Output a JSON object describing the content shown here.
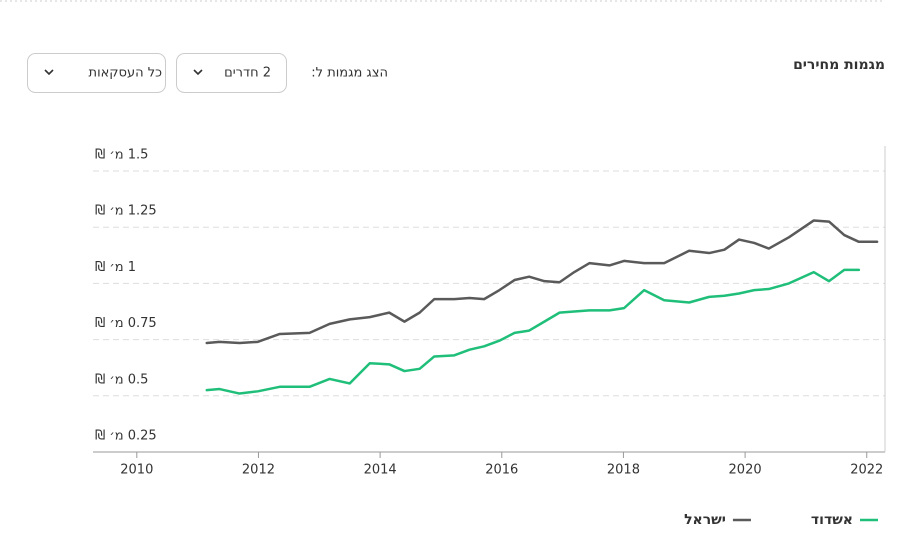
{
  "header": {
    "title": "מגמות מחירים",
    "filter_label": "הצג מגמות ל:",
    "filters": [
      "2 חדרים",
      "כל העסקאות"
    ]
  },
  "chart_data": {
    "type": "line",
    "x": [
      2011.15,
      2011.36,
      2011.69,
      2011.99,
      2012.35,
      2012.84,
      2013.17,
      2013.5,
      2013.83,
      2014.15,
      2014.4,
      2014.65,
      2014.89,
      2015.22,
      2015.47,
      2015.71,
      2015.96,
      2016.21,
      2016.45,
      2016.7,
      2016.95,
      2017.19,
      2017.44,
      2017.77,
      2018.01,
      2018.34,
      2018.67,
      2019.08,
      2019.41,
      2019.66,
      2019.9,
      2020.15,
      2020.39,
      2020.72,
      2021.13,
      2021.38,
      2021.63,
      2021.87,
      2022.17
    ],
    "series": [
      {
        "name": "אשדוד",
        "color": "#1fbf7a",
        "values": [
          0.525,
          0.53,
          0.51,
          0.52,
          0.54,
          0.54,
          0.575,
          0.555,
          0.645,
          0.64,
          0.61,
          0.62,
          0.675,
          0.68,
          0.705,
          0.72,
          0.745,
          0.78,
          0.79,
          0.83,
          0.87,
          0.875,
          0.88,
          0.88,
          0.89,
          0.97,
          0.925,
          0.915,
          0.94,
          0.945,
          0.955,
          0.97,
          0.975,
          1.0,
          1.05,
          1.01,
          1.06,
          1.06,
          null
        ]
      },
      {
        "name": "ישראל",
        "color": "#5a5a5a",
        "values": [
          0.735,
          0.74,
          0.735,
          0.74,
          0.775,
          0.78,
          0.82,
          0.84,
          0.85,
          0.87,
          0.83,
          0.87,
          0.93,
          0.93,
          0.935,
          0.93,
          0.97,
          1.015,
          1.03,
          1.01,
          1.005,
          1.05,
          1.09,
          1.08,
          1.1,
          1.09,
          1.09,
          1.145,
          1.135,
          1.15,
          1.195,
          1.18,
          1.155,
          1.205,
          1.28,
          1.275,
          1.215,
          1.185,
          1.185
        ]
      }
    ],
    "xlim": [
      2009.28,
      2022.3
    ],
    "xticks": [
      2010,
      2012,
      2014,
      2016,
      2018,
      2020,
      2022
    ],
    "ylim": [
      0.25,
      1.5
    ],
    "yticks": [
      {
        "value": 0.25,
        "label": "0.25 מ׳ ₪"
      },
      {
        "value": 0.5,
        "label": "0.5 מ׳ ₪"
      },
      {
        "value": 0.75,
        "label": "0.75 מ׳ ₪"
      },
      {
        "value": 1,
        "label": "1 מ׳ ₪"
      },
      {
        "value": 1.25,
        "label": "1.25 מ׳ ₪"
      },
      {
        "value": 1.5,
        "label": "1.5 מ׳ ₪"
      }
    ],
    "grid": true
  }
}
